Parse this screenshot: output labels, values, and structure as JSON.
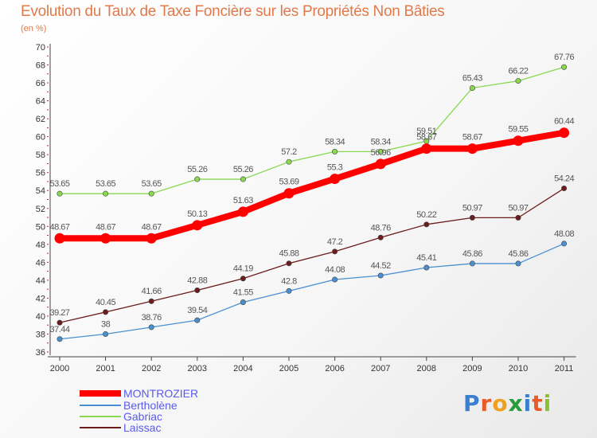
{
  "chart_data": {
    "type": "line",
    "title": "Evolution du Taux de Taxe Foncière sur les Propriétés Non Bâties",
    "subtitle": "(en %)",
    "x": [
      "2000",
      "2001",
      "2002",
      "2003",
      "2004",
      "2005",
      "2006",
      "2007",
      "2008",
      "2009",
      "2010",
      "2011"
    ],
    "yticks": [
      "36",
      "38",
      "40",
      "42",
      "44",
      "46",
      "48",
      "50",
      "52",
      "54",
      "56",
      "58",
      "60",
      "62",
      "64",
      "66",
      "68",
      "70"
    ],
    "ylim": [
      36,
      70
    ],
    "grid": false,
    "legend_position": "bottom-left",
    "series": [
      {
        "name": "MONTROZIER",
        "color": "#ff0000",
        "values": [
          48.67,
          48.67,
          48.67,
          50.13,
          51.63,
          53.69,
          55.3,
          56.96,
          58.67,
          58.67,
          59.55,
          60.44
        ],
        "labels": [
          "48.67",
          "48.67",
          "48.67",
          "50.13",
          "51.63",
          "53.69",
          "55.3",
          "56.96",
          "58.67",
          "58.67",
          "59.55",
          "60.44"
        ]
      },
      {
        "name": "Bertholène",
        "color": "#4a90d0",
        "values": [
          37.44,
          38,
          38.76,
          39.54,
          41.55,
          42.8,
          44.08,
          44.52,
          45.41,
          45.86,
          45.86,
          48.08
        ],
        "labels": [
          "37.44",
          "38",
          "38.76",
          "39.54",
          "41.55",
          "42.8",
          "44.08",
          "44.52",
          "45.41",
          "45.86",
          "45.86",
          "48.08"
        ]
      },
      {
        "name": "Gabriac",
        "color": "#88d850",
        "values": [
          53.65,
          53.65,
          53.65,
          55.26,
          55.26,
          57.2,
          58.34,
          58.34,
          59.51,
          65.43,
          66.22,
          67.76
        ],
        "labels": [
          "53.65",
          "53.65",
          "53.65",
          "55.26",
          "55.26",
          "57.2",
          "58.34",
          "58.34",
          "59.51",
          "65.43",
          "66.22",
          "67.76"
        ]
      },
      {
        "name": "Laissac",
        "color": "#6b1c1c",
        "values": [
          39.27,
          40.45,
          41.66,
          42.88,
          44.19,
          45.88,
          47.2,
          48.76,
          50.22,
          50.97,
          50.97,
          54.24
        ],
        "labels": [
          "39.27",
          "40.45",
          "41.66",
          "42.88",
          "44.19",
          "45.88",
          "47.2",
          "48.76",
          "50.22",
          "50.97",
          "50.97",
          "54.24"
        ]
      }
    ]
  },
  "logo": "Proxiti"
}
